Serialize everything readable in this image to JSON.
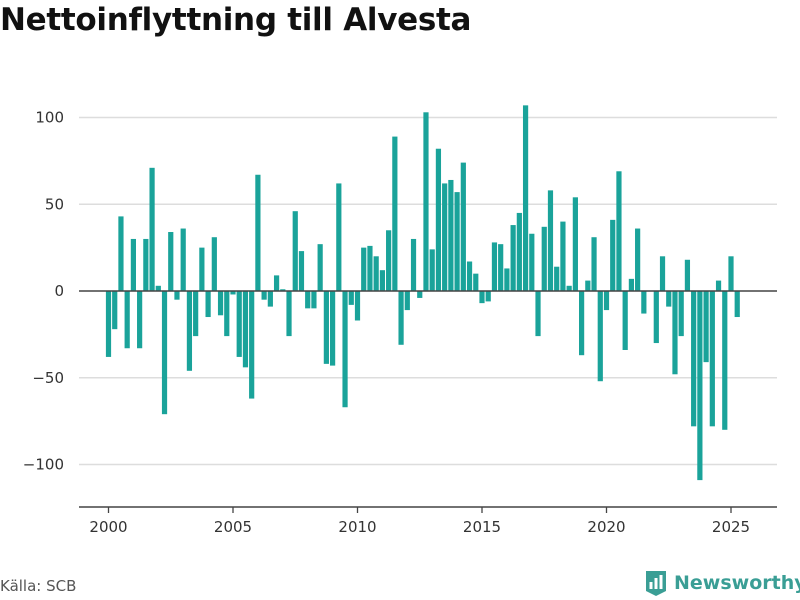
{
  "title": "Nettoinflyttning till Alvesta",
  "source": "Källa: SCB",
  "brand": {
    "name": "Newsworthy",
    "icon": "newsworthy-logo-icon"
  },
  "colors": {
    "bar": "#1aa39a",
    "grid": "#dddddd",
    "zero_line": "#444444",
    "axis": "#444444",
    "text": "#333333",
    "brand": "#3a9e95"
  },
  "chart_data": {
    "type": "bar",
    "title": "Nettoinflyttning till Alvesta",
    "xlabel": "",
    "ylabel": "",
    "x_start": 2000.0,
    "x_step": 0.25,
    "x_ticks": [
      "2000",
      "2005",
      "2010",
      "2015",
      "2020",
      "2025"
    ],
    "y_ticks": [
      100,
      50,
      0,
      -50,
      -100
    ],
    "y_tick_labels": [
      "100",
      "50",
      "0",
      "−50",
      "−100"
    ],
    "ylim": [
      -125,
      125
    ],
    "grid": true,
    "legend": "none",
    "values": [
      -38,
      -22,
      43,
      -33,
      30,
      -33,
      30,
      71,
      3,
      -71,
      34,
      -5,
      36,
      -46,
      -26,
      25,
      -15,
      31,
      -14,
      -26,
      -2,
      -38,
      -44,
      -62,
      67,
      -5,
      -9,
      9,
      1,
      -26,
      46,
      23,
      -10,
      -10,
      27,
      -42,
      -43,
      62,
      -67,
      -8,
      -17,
      25,
      26,
      20,
      12,
      35,
      89,
      -31,
      -11,
      30,
      -4,
      103,
      24,
      82,
      62,
      64,
      57,
      74,
      17,
      10,
      -7,
      -6,
      28,
      27,
      13,
      38,
      45,
      107,
      33,
      -26,
      37,
      58,
      14,
      40,
      3,
      54,
      -37,
      6,
      31,
      -52,
      -11,
      41,
      69,
      -34,
      7,
      36,
      -13,
      0,
      -30,
      20,
      -9,
      -48,
      -26,
      18,
      -78,
      -109,
      -41,
      -78,
      6,
      -80,
      20,
      -15
    ]
  }
}
